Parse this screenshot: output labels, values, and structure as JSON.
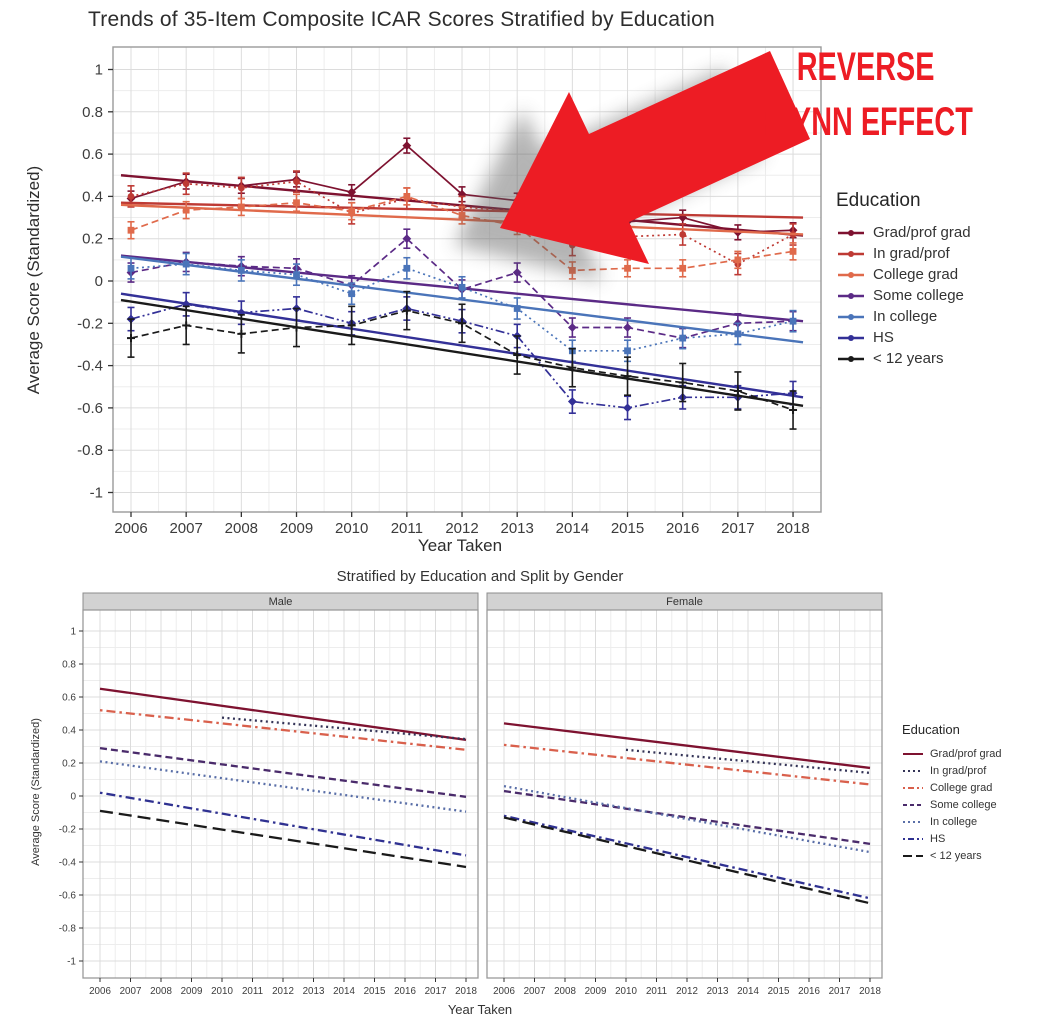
{
  "annotation": {
    "line1": "REVERSE",
    "line2": "FLYNN EFFECT",
    "text_color": "#ED1C24",
    "arrow_color": "#ED1C24"
  },
  "chart_data": [
    {
      "id": "top",
      "type": "line",
      "title": "Trends of 35-Item Composite ICAR Scores Stratified by Education",
      "xlabel": "Year Taken",
      "ylabel": "Average Score (Standardized)",
      "legend_title": "Education",
      "x": [
        2006,
        2007,
        2008,
        2009,
        2010,
        2011,
        2012,
        2013,
        2014,
        2015,
        2016,
        2017,
        2018
      ],
      "ylim": [
        -1,
        1
      ],
      "yticks": [
        1,
        0.8,
        0.6,
        0.4,
        0.2,
        0,
        -0.2,
        -0.4,
        -0.6,
        -0.8,
        -1
      ],
      "grid": true,
      "legend_position": "right",
      "series": [
        {
          "name": "Grad/prof grad",
          "color": "#7E1230",
          "dash": "solid",
          "marker": "diamond",
          "err": 0.035,
          "values": [
            0.39,
            0.47,
            0.45,
            0.48,
            0.42,
            0.64,
            0.41,
            0.38,
            0.25,
            0.28,
            0.3,
            0.23,
            0.24
          ],
          "trend": [
            0.5,
            0.215
          ]
        },
        {
          "name": "In grad/prof",
          "color": "#BE3A34",
          "dash": "dotted",
          "marker": "circle",
          "err": 0.05,
          "values": [
            0.4,
            0.46,
            0.44,
            0.47,
            0.32,
            0.39,
            0.35,
            0.33,
            0.17,
            0.21,
            0.22,
            0.08,
            0.22
          ],
          "trend": [
            0.37,
            0.3
          ]
        },
        {
          "name": "College grad",
          "color": "#E06A4B",
          "dash": "dashed",
          "marker": "square",
          "err": 0.04,
          "values": [
            0.24,
            0.335,
            0.35,
            0.37,
            0.33,
            0.4,
            0.31,
            0.26,
            0.05,
            0.06,
            0.06,
            0.1,
            0.14
          ],
          "trend": [
            0.36,
            0.22
          ]
        },
        {
          "name": "Some college",
          "color": "#5B2A86",
          "dash": "dashed",
          "marker": "diamond",
          "err": 0.045,
          "values": [
            0.04,
            0.09,
            0.07,
            0.06,
            -0.02,
            0.2,
            -0.04,
            0.04,
            -0.22,
            -0.22,
            -0.27,
            -0.2,
            -0.19
          ],
          "trend": [
            0.12,
            -0.19
          ]
        },
        {
          "name": "In college",
          "color": "#4A74B9",
          "dash": "dotted",
          "marker": "square",
          "err": 0.05,
          "values": [
            0.06,
            0.08,
            0.05,
            0.03,
            -0.06,
            0.06,
            -0.03,
            -0.13,
            -0.33,
            -0.33,
            -0.27,
            -0.25,
            -0.19
          ],
          "trend": [
            0.115,
            -0.29
          ]
        },
        {
          "name": "HS",
          "color": "#333097",
          "dash": "dashdotdot",
          "marker": "diamond",
          "err": 0.055,
          "values": [
            -0.18,
            -0.11,
            -0.15,
            -0.13,
            -0.2,
            -0.13,
            -0.19,
            -0.26,
            -0.57,
            -0.6,
            -0.55,
            -0.55,
            -0.53
          ],
          "trend": [
            -0.06,
            -0.55
          ]
        },
        {
          "name": "< 12 years",
          "color": "#1A1A1A",
          "dash": "dashed",
          "marker": "plus",
          "err": 0.09,
          "values": [
            -0.27,
            -0.21,
            -0.25,
            -0.22,
            -0.21,
            -0.14,
            -0.2,
            -0.35,
            -0.41,
            -0.45,
            -0.48,
            -0.52,
            -0.61
          ],
          "trend": [
            -0.09,
            -0.59
          ]
        }
      ]
    },
    {
      "id": "bottom",
      "type": "line",
      "title": "Stratified by Education and Split by Gender",
      "xlabel": "Year Taken",
      "ylabel": "Average Score (Standardized)",
      "legend_title": "Education",
      "x": [
        2006,
        2007,
        2008,
        2009,
        2010,
        2011,
        2012,
        2013,
        2014,
        2015,
        2016,
        2017,
        2018
      ],
      "ylim": [
        -1,
        1
      ],
      "yticks": [
        1,
        0.8,
        0.6,
        0.4,
        0.2,
        0,
        -0.2,
        -0.4,
        -0.6,
        -0.8,
        -1
      ],
      "grid": true,
      "legend_position": "right",
      "legend": [
        {
          "name": "Grad/prof grad",
          "color": "#7E1230",
          "dash": "solid"
        },
        {
          "name": "In grad/prof",
          "color": "#343457",
          "dash": "dotted"
        },
        {
          "name": "College grad",
          "color": "#D9604C",
          "dash": "dashdot"
        },
        {
          "name": "Some college",
          "color": "#4A2B6B",
          "dash": "dashed"
        },
        {
          "name": "In college",
          "color": "#5A6FA8",
          "dash": "dotted"
        },
        {
          "name": "HS",
          "color": "#2F3191",
          "dash": "dashdot"
        },
        {
          "name": "< 12 years",
          "color": "#1A1A1A",
          "dash": "longdash"
        }
      ],
      "facets": [
        {
          "label": "Male",
          "lines": [
            {
              "name": "Grad/prof grad",
              "x": [
                2006,
                2018
              ],
              "y": [
                0.65,
                0.34
              ]
            },
            {
              "name": "In grad/prof",
              "x": [
                2010,
                2018
              ],
              "y": [
                0.475,
                0.345
              ]
            },
            {
              "name": "College grad",
              "x": [
                2006,
                2018
              ],
              "y": [
                0.52,
                0.28
              ]
            },
            {
              "name": "Some college",
              "x": [
                2006,
                2018
              ],
              "y": [
                0.29,
                -0.005
              ]
            },
            {
              "name": "In college",
              "x": [
                2006,
                2018
              ],
              "y": [
                0.21,
                -0.095
              ]
            },
            {
              "name": "HS",
              "x": [
                2006,
                2018
              ],
              "y": [
                0.02,
                -0.36
              ]
            },
            {
              "name": "< 12 years",
              "x": [
                2006,
                2018
              ],
              "y": [
                -0.09,
                -0.43
              ]
            }
          ]
        },
        {
          "label": "Female",
          "lines": [
            {
              "name": "Grad/prof grad",
              "x": [
                2006,
                2018
              ],
              "y": [
                0.44,
                0.17
              ]
            },
            {
              "name": "In grad/prof",
              "x": [
                2010,
                2018
              ],
              "y": [
                0.28,
                0.14
              ]
            },
            {
              "name": "College grad",
              "x": [
                2006,
                2018
              ],
              "y": [
                0.31,
                0.07
              ]
            },
            {
              "name": "Some college",
              "x": [
                2006,
                2018
              ],
              "y": [
                0.03,
                -0.29
              ]
            },
            {
              "name": "In college",
              "x": [
                2006,
                2018
              ],
              "y": [
                0.06,
                -0.34
              ]
            },
            {
              "name": "HS",
              "x": [
                2006,
                2018
              ],
              "y": [
                -0.12,
                -0.62
              ]
            },
            {
              "name": "< 12 years",
              "x": [
                2006,
                2018
              ],
              "y": [
                -0.13,
                -0.65
              ]
            }
          ]
        }
      ]
    }
  ],
  "style": {
    "panel_border": "#9a9a9a",
    "grid_major": "#dcdcdc",
    "grid_minor": "#ededed",
    "tick_color": "#333333",
    "strip_fill": "#d2d2d2",
    "strip_border": "#8c8c8c"
  }
}
